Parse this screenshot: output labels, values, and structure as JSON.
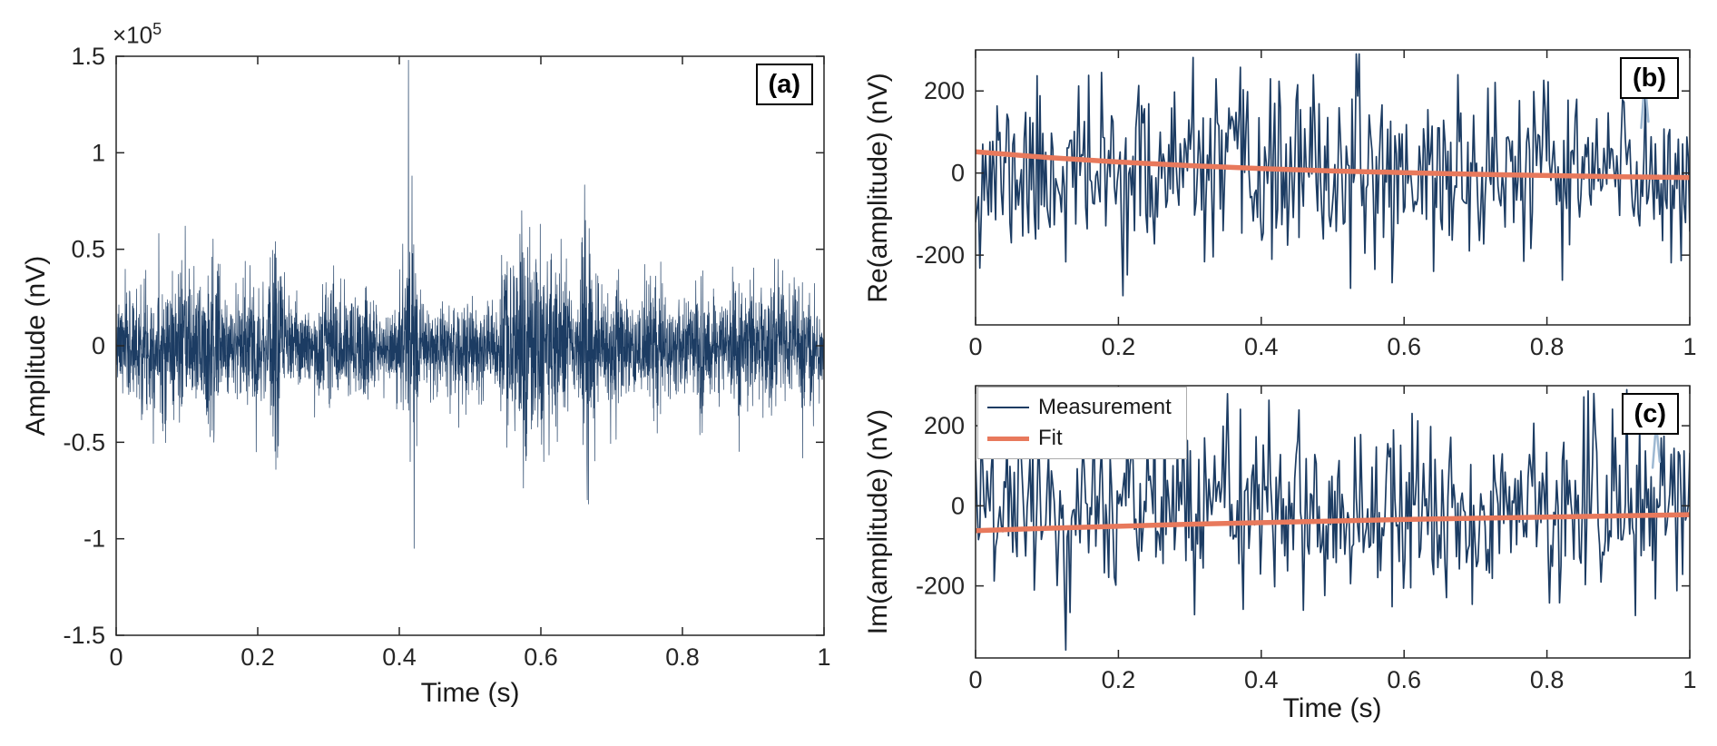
{
  "colors": {
    "measurement": "#1c3c63",
    "fit": "#e8795c",
    "highlight": "#9db8d2",
    "axis": "#262626",
    "text": "#1a1a1a",
    "panel_border": "#000000",
    "legend_border": "#adadad",
    "background": "#ffffff"
  },
  "chart_data": [
    {
      "id": "a",
      "type": "line",
      "panel_label": "(a)",
      "xlabel": "Time (s)",
      "ylabel": "Amplitude (nV)",
      "y_exponent_base": "×10",
      "y_exponent_power": "5",
      "xlim": [
        0,
        1
      ],
      "ylim": [
        -150000,
        150000
      ],
      "xticks": [
        0,
        0.2,
        0.4,
        0.6,
        0.8,
        1
      ],
      "xtick_labels": [
        "0",
        "0.2",
        "0.4",
        "0.6",
        "0.8",
        "1"
      ],
      "yticks": [
        -150000,
        -100000,
        -50000,
        0,
        50000,
        100000,
        150000
      ],
      "ytick_labels": [
        "-1.5",
        "-1",
        "-0.5",
        "0",
        "0.5",
        "1",
        "1.5"
      ],
      "grid": false,
      "legend_position": "none",
      "series": [
        {
          "name": "signal",
          "style": "noise",
          "color_key": "measurement",
          "width": 0.7,
          "n": 3600,
          "seed": 7,
          "noise_std": 9500,
          "bursts": [
            {
              "t": 0.03,
              "w": 0.02,
              "g": 0.8
            },
            {
              "t": 0.07,
              "w": 0.02,
              "g": 1.0
            },
            {
              "t": 0.1,
              "w": 0.015,
              "g": 0.9
            },
            {
              "t": 0.135,
              "w": 0.015,
              "g": 1.4
            },
            {
              "t": 0.19,
              "w": 0.02,
              "g": 0.7
            },
            {
              "t": 0.225,
              "w": 0.012,
              "g": 1.6
            },
            {
              "t": 0.3,
              "w": 0.02,
              "g": 0.6
            },
            {
              "t": 0.355,
              "w": 0.012,
              "g": 0.9
            },
            {
              "t": 0.415,
              "w": 0.01,
              "g": 1.8
            },
            {
              "t": 0.48,
              "w": 0.02,
              "g": 0.5
            },
            {
              "t": 0.55,
              "w": 0.015,
              "g": 1.2
            },
            {
              "t": 0.575,
              "w": 0.012,
              "g": 2.0
            },
            {
              "t": 0.6,
              "w": 0.012,
              "g": 1.8
            },
            {
              "t": 0.625,
              "w": 0.012,
              "g": 1.5
            },
            {
              "t": 0.665,
              "w": 0.012,
              "g": 2.2
            },
            {
              "t": 0.7,
              "w": 0.02,
              "g": 0.8
            },
            {
              "t": 0.76,
              "w": 0.02,
              "g": 0.9
            },
            {
              "t": 0.83,
              "w": 0.02,
              "g": 0.7
            },
            {
              "t": 0.88,
              "w": 0.02,
              "g": 0.8
            },
            {
              "t": 0.93,
              "w": 0.02,
              "g": 0.9
            },
            {
              "t": 0.97,
              "w": 0.015,
              "g": 1.0
            }
          ],
          "spikes": [
            {
              "t": 0.413,
              "amp": 148000
            },
            {
              "t": 0.4155,
              "amp": -60000
            },
            {
              "t": 0.418,
              "amp": 88000
            },
            {
              "t": 0.421,
              "amp": -105000
            },
            {
              "t": 0.135,
              "amp": 46000
            },
            {
              "t": 0.138,
              "amp": -50000
            },
            {
              "t": 0.225,
              "amp": 54000
            },
            {
              "t": 0.228,
              "amp": -58000
            },
            {
              "t": 0.573,
              "amp": 70000
            },
            {
              "t": 0.578,
              "amp": -52000
            },
            {
              "t": 0.599,
              "amp": 63000
            },
            {
              "t": 0.604,
              "amp": -60000
            },
            {
              "t": 0.663,
              "amp": 65000
            },
            {
              "t": 0.667,
              "amp": -82000
            },
            {
              "t": 0.93,
              "amp": 45000
            }
          ]
        }
      ]
    },
    {
      "id": "b",
      "type": "line",
      "panel_label": "(b)",
      "xlabel": "",
      "ylabel": "Re(amplitude) (nV)",
      "xlim": [
        0,
        1
      ],
      "ylim": [
        -370,
        300
      ],
      "xticks": [
        0,
        0.2,
        0.4,
        0.6,
        0.8,
        1
      ],
      "xtick_labels": [
        "0",
        "0.2",
        "0.4",
        "0.6",
        "0.8",
        "1"
      ],
      "yticks": [
        -200,
        0,
        200
      ],
      "ytick_labels": [
        "-200",
        "0",
        "200"
      ],
      "grid": false,
      "legend_position": "none",
      "series": [
        {
          "name": "Measurement",
          "style": "noise",
          "color_key": "measurement",
          "width": 1.7,
          "n": 500,
          "seed": 11,
          "noise_std": 105,
          "clip": [
            -340,
            290
          ]
        },
        {
          "name": "highlight",
          "style": "line",
          "color_key": "highlight",
          "width": 2.5,
          "points": [
            [
              0.932,
              110
            ],
            [
              0.937,
              228
            ],
            [
              0.942,
              125
            ]
          ]
        },
        {
          "name": "Fit",
          "style": "line",
          "color_key": "fit",
          "width": 5.5,
          "points": [
            [
              0,
              52
            ],
            [
              0.1,
              38
            ],
            [
              0.2,
              27
            ],
            [
              0.3,
              18
            ],
            [
              0.4,
              11
            ],
            [
              0.5,
              5
            ],
            [
              0.6,
              1
            ],
            [
              0.7,
              -3
            ],
            [
              0.8,
              -6
            ],
            [
              0.9,
              -9
            ],
            [
              1,
              -11
            ]
          ]
        }
      ]
    },
    {
      "id": "c",
      "type": "line",
      "panel_label": "(c)",
      "xlabel": "Time (s)",
      "ylabel": "Im(amplitude) (nV)",
      "xlim": [
        0,
        1
      ],
      "ylim": [
        -380,
        300
      ],
      "xticks": [
        0,
        0.2,
        0.4,
        0.6,
        0.8,
        1
      ],
      "xtick_labels": [
        "0",
        "0.2",
        "0.4",
        "0.6",
        "0.8",
        "1"
      ],
      "yticks": [
        -200,
        0,
        200
      ],
      "ytick_labels": [
        "-200",
        "0",
        "200"
      ],
      "grid": false,
      "legend_position": "northwest",
      "legend_items": [
        {
          "label": "Measurement",
          "color_key": "measurement",
          "line_width": 2
        },
        {
          "label": "Fit",
          "color_key": "fit",
          "line_width": 5
        }
      ],
      "series": [
        {
          "name": "Measurement",
          "style": "noise",
          "color_key": "measurement",
          "width": 1.7,
          "n": 500,
          "seed": 29,
          "noise_std": 108,
          "clip": [
            -360,
            290
          ]
        },
        {
          "name": "highlight",
          "style": "line",
          "color_key": "highlight",
          "width": 2.5,
          "points": [
            [
              0.948,
              95
            ],
            [
              0.953,
              205
            ],
            [
              0.958,
              110
            ]
          ]
        },
        {
          "name": "Fit",
          "style": "line",
          "color_key": "fit",
          "width": 5.5,
          "points": [
            [
              0,
              -62
            ],
            [
              0.1,
              -56
            ],
            [
              0.2,
              -51
            ],
            [
              0.3,
              -46
            ],
            [
              0.4,
              -42
            ],
            [
              0.5,
              -38
            ],
            [
              0.6,
              -34
            ],
            [
              0.7,
              -31
            ],
            [
              0.8,
              -28
            ],
            [
              0.9,
              -25
            ],
            [
              1,
              -22
            ]
          ]
        }
      ]
    }
  ]
}
